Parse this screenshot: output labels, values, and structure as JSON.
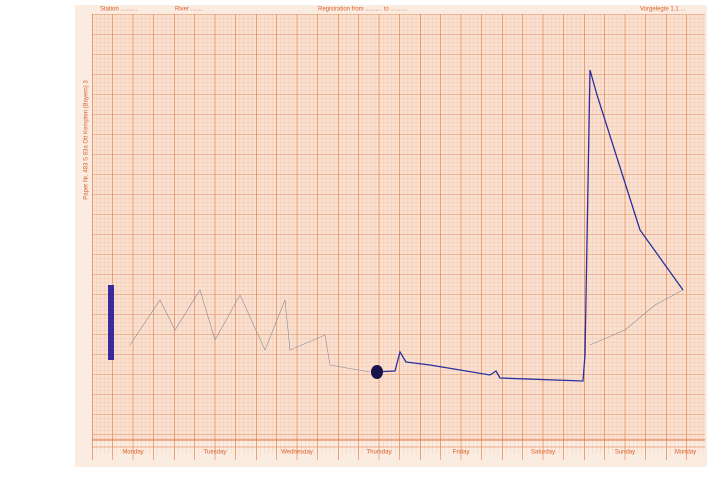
{
  "header": {
    "station": "Station ..........",
    "river": "River .......",
    "registration": "Registration from .......... to ..........",
    "corner": "Vorgelegte 1.1 ..."
  },
  "side_label": "Paper Nr. 483 S 83a   Ott Kempten (Bayern) 3",
  "days": [
    "Monday",
    "Tuesday",
    "Wednesday",
    "Thursday",
    "Friday",
    "Saturday",
    "Sunday",
    "Monday"
  ]
}
